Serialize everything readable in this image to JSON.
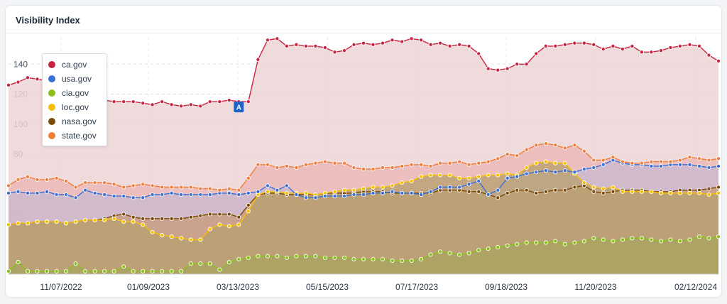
{
  "card": {
    "title": "Visibility Index"
  },
  "chart_data": {
    "type": "area",
    "title": "Visibility Index",
    "xlabel": "",
    "ylabel": "",
    "ylim": [
      0,
      160
    ],
    "yticks": [
      20,
      40,
      60,
      80,
      100,
      120,
      140
    ],
    "x_ticks": [
      "11/07/2022",
      "01/09/2023",
      "03/13/2023",
      "05/15/2023",
      "07/17/2023",
      "09/18/2023",
      "11/20/2023",
      "02/12/2024"
    ],
    "grid": true,
    "legend": "top-left",
    "annotations": [
      {
        "label": "A",
        "series": "ca.gov",
        "point_index": 24
      }
    ],
    "series": [
      {
        "name": "ca.gov",
        "color": "#c8243f",
        "fill": "#ecd3d6",
        "values": [
          126,
          128,
          131,
          130,
          129,
          134,
          132,
          127,
          124,
          121,
          116,
          115,
          115,
          115,
          114,
          113,
          115,
          113,
          112,
          113,
          112,
          115,
          115,
          116,
          115,
          115,
          143,
          156,
          157,
          152,
          153,
          152,
          152,
          151,
          148,
          149,
          153,
          154,
          153,
          154,
          156,
          155,
          157,
          156,
          153,
          154,
          152,
          153,
          152,
          147,
          137,
          136,
          137,
          140,
          140,
          147,
          152,
          152,
          153,
          154,
          154,
          153,
          150,
          152,
          150,
          152,
          148,
          148,
          149,
          151,
          152,
          153,
          152,
          146,
          142
        ]
      },
      {
        "name": "usa.gov",
        "color": "#3a6fd4",
        "fill": "#c8b9d0",
        "values": [
          54,
          55,
          54,
          54,
          55,
          53,
          53,
          51,
          56,
          54,
          53,
          52,
          52,
          51,
          51,
          53,
          53,
          54,
          53,
          53,
          53,
          53,
          54,
          54,
          53,
          54,
          55,
          59,
          56,
          59,
          53,
          51,
          51,
          52,
          52,
          52,
          53,
          53,
          54,
          54,
          55,
          54,
          54,
          53,
          55,
          58,
          58,
          58,
          60,
          62,
          53,
          56,
          64,
          65,
          67,
          68,
          69,
          68,
          69,
          68,
          70,
          71,
          73,
          76,
          74,
          73,
          73,
          72,
          72,
          73,
          73,
          73,
          72,
          71,
          72
        ]
      },
      {
        "name": "cia.gov",
        "color": "#8bbf1e",
        "fill": "#a8a460",
        "values": [
          2,
          8,
          2,
          2,
          2,
          2,
          2,
          7,
          2,
          2,
          2,
          2,
          5,
          2,
          2,
          2,
          2,
          2,
          2,
          7,
          7,
          7,
          3,
          8,
          10,
          11,
          12,
          12,
          12,
          11,
          12,
          12,
          12,
          11,
          11,
          11,
          10,
          10,
          10,
          10,
          9,
          9,
          9,
          10,
          13,
          15,
          14,
          13,
          14,
          16,
          17,
          18,
          19,
          20,
          21,
          21,
          21,
          22,
          20,
          21,
          22,
          24,
          23,
          22,
          23,
          24,
          24,
          23,
          22,
          23,
          22,
          23,
          25,
          24,
          25
        ]
      },
      {
        "name": "loc.gov",
        "color": "#f5c000",
        "fill": "#b8a070",
        "values": [
          33,
          34,
          34,
          35,
          35,
          35,
          34,
          35,
          36,
          36,
          36,
          37,
          35,
          35,
          33,
          28,
          26,
          25,
          24,
          23,
          23,
          30,
          33,
          32,
          33,
          42,
          53,
          55,
          55,
          54,
          54,
          54,
          53,
          54,
          55,
          56,
          56,
          57,
          58,
          58,
          59,
          61,
          62,
          65,
          66,
          66,
          66,
          64,
          64,
          65,
          66,
          66,
          67,
          66,
          71,
          74,
          75,
          74,
          74,
          67,
          61,
          58,
          57,
          58,
          55,
          55,
          55,
          55,
          54,
          54,
          54,
          54,
          54,
          53,
          54
        ]
      },
      {
        "name": "nasa.gov",
        "color": "#7a4a0a",
        "fill": "#c99b7c",
        "values": [
          33,
          34,
          34,
          35,
          35,
          35,
          34,
          35,
          36,
          36,
          37,
          39,
          40,
          38,
          37,
          37,
          37,
          37,
          37,
          38,
          39,
          40,
          40,
          40,
          38,
          46,
          53,
          54,
          54,
          53,
          53,
          53,
          53,
          54,
          54,
          54,
          54,
          55,
          55,
          55,
          54,
          54,
          54,
          54,
          54,
          56,
          56,
          56,
          55,
          55,
          53,
          51,
          54,
          56,
          56,
          54,
          55,
          56,
          56,
          58,
          59,
          55,
          54,
          55,
          56,
          56,
          56,
          55,
          55,
          55,
          56,
          56,
          56,
          57,
          58
        ]
      },
      {
        "name": "state.gov",
        "color": "#f07e3b",
        "fill": "#eab7b6",
        "values": [
          59,
          63,
          65,
          63,
          63,
          64,
          62,
          58,
          61,
          61,
          61,
          60,
          58,
          59,
          60,
          59,
          58,
          58,
          58,
          58,
          57,
          57,
          56,
          57,
          56,
          64,
          73,
          73,
          71,
          72,
          71,
          73,
          74,
          75,
          74,
          74,
          71,
          70,
          70,
          71,
          71,
          72,
          73,
          73,
          72,
          74,
          74,
          75,
          73,
          74,
          75,
          77,
          80,
          79,
          83,
          86,
          87,
          86,
          84,
          86,
          82,
          76,
          76,
          78,
          75,
          74,
          74,
          75,
          75,
          75,
          76,
          78,
          77,
          76,
          77
        ]
      }
    ]
  }
}
